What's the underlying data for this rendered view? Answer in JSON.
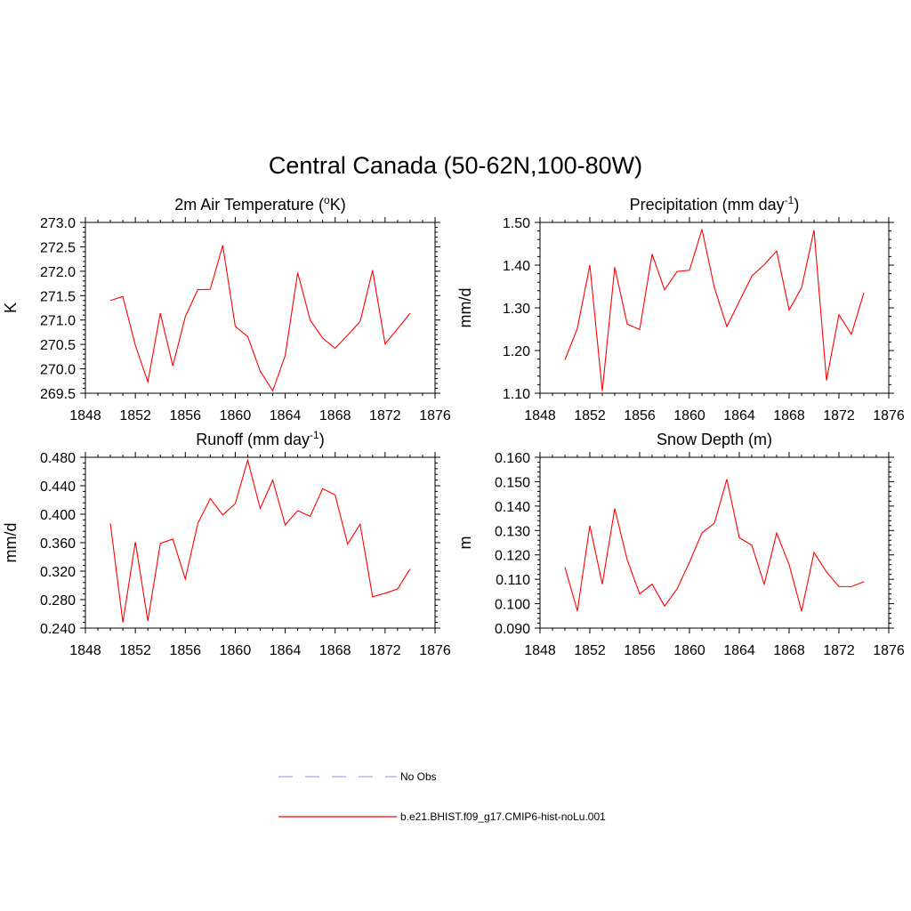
{
  "figure": {
    "title": "Central Canada (50-62N,100-80W)"
  },
  "legend": {
    "entries": [
      {
        "label": "No Obs",
        "color": "#a8a8f0",
        "dash": true
      },
      {
        "label": "b.e21.BHIST.f09_g17.CMIP6-hist-noLu.001",
        "color": "#ff0000",
        "dash": false
      }
    ]
  },
  "chart_data": [
    {
      "type": "line",
      "title": "2m Air Temperature (",
      "title_sup": "o",
      "title_suffix": "K)",
      "ylabel": "K",
      "xlim": [
        1848,
        1876
      ],
      "xticks": [
        1848,
        1852,
        1856,
        1860,
        1864,
        1868,
        1872,
        1876
      ],
      "ylim": [
        269.5,
        273.0
      ],
      "yticks": [
        "269.5",
        "270.0",
        "270.5",
        "271.0",
        "271.5",
        "272.0",
        "272.5",
        "273.0"
      ],
      "series": [
        {
          "color": "#ff0000",
          "x": [
            1850,
            1851,
            1852,
            1853,
            1854,
            1855,
            1856,
            1857,
            1858,
            1859,
            1860,
            1861,
            1862,
            1863,
            1864,
            1865,
            1866,
            1867,
            1868,
            1869,
            1870,
            1871,
            1872,
            1873,
            1874
          ],
          "y": [
            271.4,
            271.48,
            270.48,
            269.73,
            271.14,
            270.06,
            271.07,
            271.62,
            271.63,
            272.53,
            270.87,
            270.66,
            269.95,
            269.55,
            270.27,
            271.97,
            271.0,
            270.63,
            270.42,
            270.69,
            270.97,
            272.02,
            270.51,
            270.82,
            271.14
          ]
        }
      ]
    },
    {
      "type": "line",
      "title": "Precipitation (mm day",
      "title_sup": "-1",
      "title_suffix": ")",
      "ylabel": "mm/d",
      "xlim": [
        1848,
        1876
      ],
      "xticks": [
        1848,
        1852,
        1856,
        1860,
        1864,
        1868,
        1872,
        1876
      ],
      "ylim": [
        1.1,
        1.5
      ],
      "yticks": [
        "1.10",
        "1.20",
        "1.30",
        "1.40",
        "1.50"
      ],
      "series": [
        {
          "color": "#ff0000",
          "x": [
            1850,
            1851,
            1852,
            1853,
            1854,
            1855,
            1856,
            1857,
            1858,
            1859,
            1860,
            1861,
            1862,
            1863,
            1864,
            1865,
            1866,
            1867,
            1868,
            1869,
            1870,
            1871,
            1872,
            1873,
            1874
          ],
          "y": [
            1.178,
            1.252,
            1.4,
            1.105,
            1.395,
            1.262,
            1.249,
            1.426,
            1.342,
            1.385,
            1.388,
            1.484,
            1.347,
            1.256,
            1.315,
            1.374,
            1.401,
            1.433,
            1.295,
            1.347,
            1.482,
            1.13,
            1.284,
            1.238,
            1.335
          ]
        }
      ]
    },
    {
      "type": "line",
      "title": "Runoff (mm day",
      "title_sup": "-1",
      "title_suffix": ")",
      "ylabel": "mm/d",
      "xlim": [
        1848,
        1876
      ],
      "xticks": [
        1848,
        1852,
        1856,
        1860,
        1864,
        1868,
        1872,
        1876
      ],
      "ylim": [
        0.24,
        0.48
      ],
      "yticks": [
        "0.240",
        "0.280",
        "0.320",
        "0.360",
        "0.400",
        "0.440",
        "0.480"
      ],
      "series": [
        {
          "color": "#ff0000",
          "x": [
            1850,
            1851,
            1852,
            1853,
            1854,
            1855,
            1856,
            1857,
            1858,
            1859,
            1860,
            1861,
            1862,
            1863,
            1864,
            1865,
            1866,
            1867,
            1868,
            1869,
            1870,
            1871,
            1872,
            1873,
            1874
          ],
          "y": [
            0.387,
            0.248,
            0.361,
            0.25,
            0.359,
            0.365,
            0.309,
            0.387,
            0.422,
            0.399,
            0.415,
            0.476,
            0.408,
            0.448,
            0.385,
            0.405,
            0.397,
            0.436,
            0.427,
            0.358,
            0.386,
            0.284,
            0.289,
            0.295,
            0.323
          ]
        }
      ]
    },
    {
      "type": "line",
      "title": "Snow Depth (m)",
      "title_sup": "",
      "title_suffix": "",
      "ylabel": "m",
      "xlim": [
        1848,
        1876
      ],
      "xticks": [
        1848,
        1852,
        1856,
        1860,
        1864,
        1868,
        1872,
        1876
      ],
      "ylim": [
        0.09,
        0.16
      ],
      "yticks": [
        "0.090",
        "0.100",
        "0.110",
        "0.120",
        "0.130",
        "0.140",
        "0.150",
        "0.160"
      ],
      "series": [
        {
          "color": "#ff0000",
          "x": [
            1850,
            1851,
            1852,
            1853,
            1854,
            1855,
            1856,
            1857,
            1858,
            1859,
            1860,
            1861,
            1862,
            1863,
            1864,
            1865,
            1866,
            1867,
            1868,
            1869,
            1870,
            1871,
            1872,
            1873,
            1874
          ],
          "y": [
            0.115,
            0.097,
            0.132,
            0.108,
            0.139,
            0.118,
            0.104,
            0.108,
            0.099,
            0.106,
            0.117,
            0.129,
            0.133,
            0.151,
            0.127,
            0.124,
            0.108,
            0.129,
            0.116,
            0.097,
            0.121,
            0.113,
            0.107,
            0.107,
            0.109
          ]
        }
      ]
    }
  ]
}
